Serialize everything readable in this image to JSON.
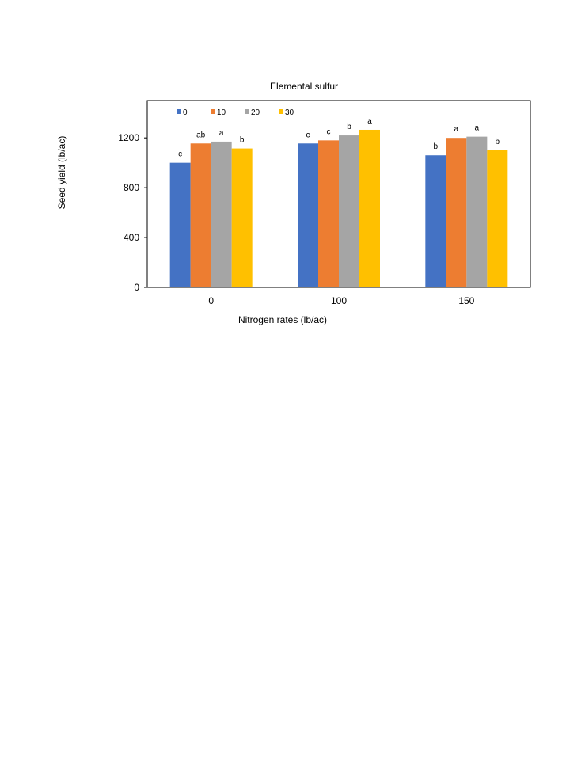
{
  "chart_data": {
    "type": "bar",
    "title": "Elemental sulfur",
    "xlabel": "Nitrogen rates (lb/ac)",
    "ylabel": "Seed yield (lb/ac)",
    "categories": [
      "0",
      "100",
      "150"
    ],
    "ylim": [
      0,
      1500
    ],
    "yticks": [
      0,
      400,
      800,
      1200
    ],
    "grid": false,
    "legend_position": "top-left",
    "series": [
      {
        "name": "0",
        "color": "#4472C4",
        "values": [
          1000,
          1155,
          1060
        ],
        "letters": [
          "c",
          "c",
          "b"
        ]
      },
      {
        "name": "10",
        "color": "#ED7D31",
        "values": [
          1155,
          1180,
          1200
        ],
        "letters": [
          "ab",
          "c",
          "a"
        ]
      },
      {
        "name": "20",
        "color": "#A5A5A5",
        "values": [
          1170,
          1220,
          1210
        ],
        "letters": [
          "a",
          "b",
          "a"
        ]
      },
      {
        "name": "30",
        "color": "#FFC000",
        "values": [
          1115,
          1265,
          1100
        ],
        "letters": [
          "b",
          "a",
          "b"
        ]
      }
    ]
  }
}
